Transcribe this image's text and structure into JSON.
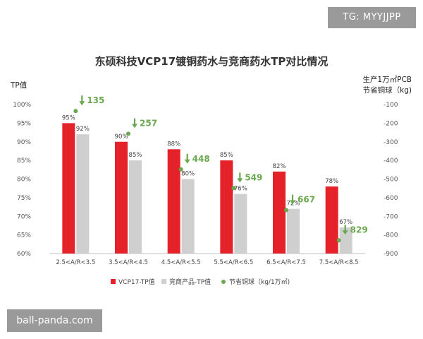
{
  "watermarks": {
    "top": "TG: MYYJJPP",
    "bottom": "ball-panda.com"
  },
  "colors": {
    "vcp17": "#e5222a",
    "competitor": "#cfcfcf",
    "saving": "#6aa84f"
  },
  "chart_data": {
    "type": "bar",
    "title": "东硕科技VCP17镀铜药水与竞商药水TP对比情况",
    "ylabel": "TP值",
    "y2label_line1": "生产1万㎡PCB",
    "y2label_line2": "节省铜球（kg)",
    "ylim": [
      0.6,
      1.0
    ],
    "y2lim": [
      -900,
      -100
    ],
    "yticks": [
      "100%",
      "95%",
      "90%",
      "85%",
      "80%",
      "75%",
      "70%",
      "65%",
      "60%"
    ],
    "y2ticks": [
      "-100",
      "-200",
      "-300",
      "-400",
      "-500",
      "-600",
      "-700",
      "-800",
      "-900"
    ],
    "categories": [
      "2.5<A/R<3.5",
      "3.5<A/R<4.5",
      "4.5<A/R<5.5",
      "5.5<A/R<6.5",
      "6.5<A/R<7.5",
      "7.5<A/R<8.5"
    ],
    "series": [
      {
        "name": "VCP17-TP值",
        "type": "bar",
        "values": [
          0.95,
          0.9,
          0.88,
          0.85,
          0.82,
          0.78
        ],
        "labels": [
          "95%",
          "90%",
          "88%",
          "85%",
          "82%",
          "78%"
        ]
      },
      {
        "name": "竞商产品-TP值",
        "type": "bar",
        "values": [
          0.92,
          0.85,
          0.8,
          0.76,
          0.72,
          0.67
        ],
        "labels": [
          "92%",
          "85%",
          "80%",
          "76%",
          "72%",
          "67%"
        ]
      },
      {
        "name": "节省铜球（kg/1万㎡)",
        "type": "scatter",
        "axis": "right",
        "values": [
          -135,
          -257,
          -448,
          -549,
          -667,
          -829
        ],
        "labels": [
          "135",
          "257",
          "448",
          "549",
          "667",
          "829"
        ]
      }
    ],
    "legend_position": "bottom",
    "grid": false
  }
}
